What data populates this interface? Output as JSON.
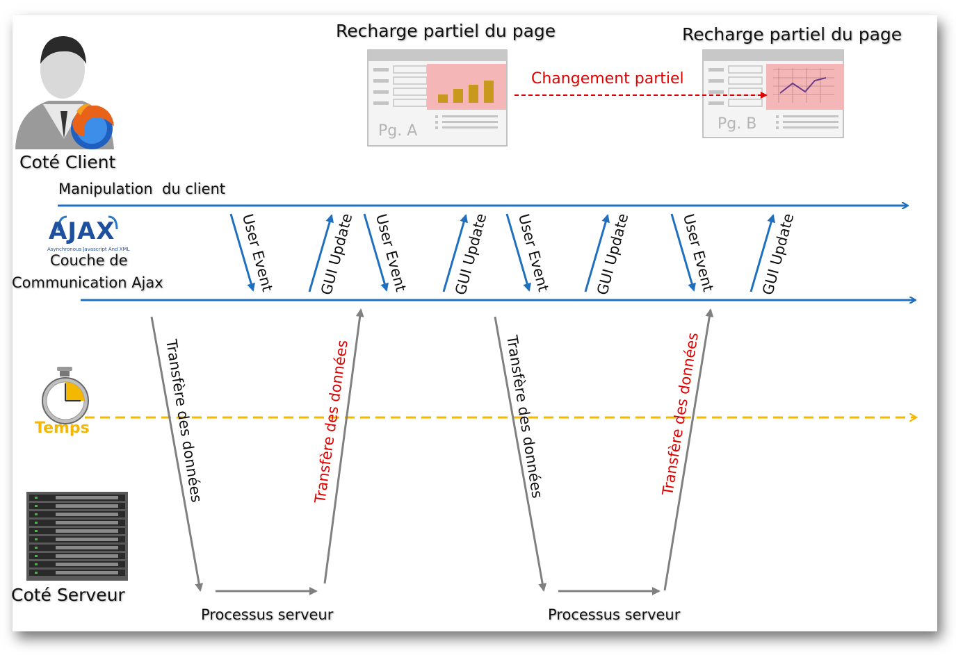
{
  "pages": {
    "a_title": "Recharge partiel du page",
    "b_title": "Recharge partiel du page",
    "a_label": "Pg. A",
    "b_label": "Pg. B",
    "change_label": "Changement partiel"
  },
  "actors": {
    "client": "Coté Client",
    "client_line": "Manipulation  du client",
    "ajax_logo": "AJAX",
    "ajax_logo_sub": "Asynchronous Javascript And XML",
    "ajax_layer_1": "Couche de",
    "ajax_layer_2": "Communication Ajax",
    "time": "Temps",
    "server": "Coté Serveur"
  },
  "events": {
    "user_event": [
      "User Event",
      "User Event",
      "User Event",
      "User Event"
    ],
    "gui_update": [
      "GUI Update",
      "GUI Update",
      "GUI Update",
      "GUI Update"
    ]
  },
  "transfers": {
    "down": [
      "Transfère des données",
      "Transfère des données"
    ],
    "up": [
      "Transfère des données",
      "Transfère des données"
    ]
  },
  "process": [
    "Processus serveur",
    "Processus serveur"
  ],
  "colors": {
    "blue": "#1f6fbf",
    "gray": "#808080",
    "red": "#e00000",
    "time": "#f5b800",
    "highlight": "#f4b6b6"
  }
}
